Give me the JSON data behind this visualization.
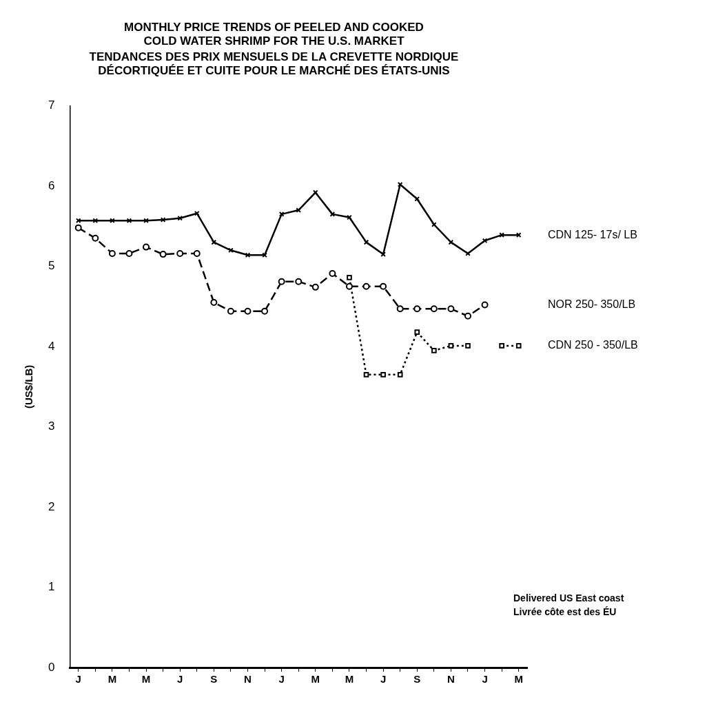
{
  "chart_data": {
    "type": "line",
    "title": "MONTHLY PRICE TRENDS OF PEELED AND COOKED\nCOLD WATER SHRIMP FOR THE U.S. MARKET",
    "subtitle": "TENDANCES DES PRIX MENSUELS DE LA CREVETTE NORDIQUE\nDÉCORTIQUÉE ET CUITE POUR LE MARCHÉ DES ÉTATS-UNIS",
    "ylabel": "(US$/LB)",
    "categories": [
      "J",
      null,
      "M",
      null,
      "M",
      null,
      "J",
      null,
      "S",
      null,
      "N",
      null,
      "J",
      null,
      "M",
      null,
      "M",
      null,
      "J",
      null,
      "S",
      null,
      "N",
      null,
      "J",
      null,
      "M"
    ],
    "series": [
      {
        "name": "CDN 125- 17s/ LB",
        "color": "#000000",
        "marker": "cross",
        "line_style": "solid",
        "values": [
          5.57,
          5.57,
          5.57,
          5.57,
          5.57,
          5.58,
          5.6,
          5.66,
          5.3,
          5.2,
          5.14,
          5.14,
          5.65,
          5.7,
          5.92,
          5.65,
          5.61,
          5.3,
          5.15,
          6.02,
          5.84,
          5.52,
          5.3,
          5.16,
          5.32,
          5.39,
          5.39
        ]
      },
      {
        "name": "NOR 250- 350/LB",
        "color": "#000000",
        "marker": "circle",
        "line_style": "dashed",
        "values": [
          5.48,
          5.35,
          5.16,
          5.16,
          5.24,
          5.15,
          5.16,
          5.16,
          4.55,
          4.44,
          4.44,
          4.44,
          4.81,
          4.81,
          4.74,
          4.91,
          4.75,
          4.75,
          4.75,
          4.47,
          4.47,
          4.47,
          4.47,
          4.38,
          4.52,
          null,
          null
        ]
      },
      {
        "name": "CDN 250 - 350/LB",
        "color": "#000000",
        "marker": "square",
        "line_style": "dotted",
        "values": [
          null,
          null,
          null,
          null,
          null,
          null,
          null,
          null,
          null,
          null,
          null,
          null,
          null,
          null,
          null,
          null,
          4.86,
          3.65,
          3.65,
          3.65,
          4.18,
          3.95,
          4.01,
          4.01,
          null,
          4.01,
          4.01
        ]
      }
    ],
    "ylim": [
      0,
      7
    ],
    "yticks": [
      0,
      1,
      2,
      3,
      4,
      5,
      6,
      7
    ],
    "grid": false,
    "legend": false,
    "annotations": [
      "Delivered US East coast\nLivrée côte est des ÉU"
    ]
  }
}
